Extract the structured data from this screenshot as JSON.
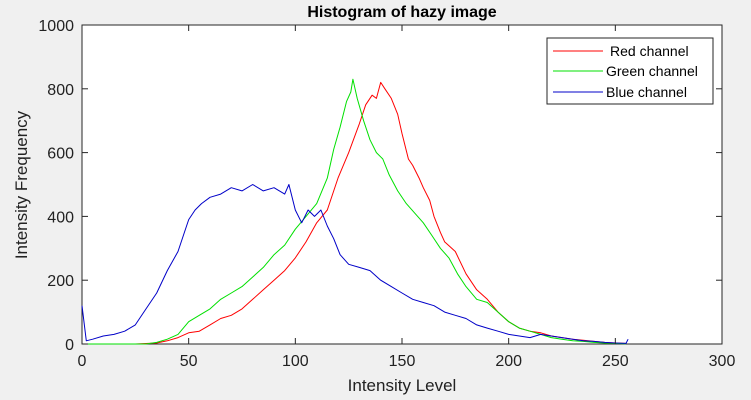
{
  "chart_data": {
    "type": "line",
    "title": "Histogram of hazy image",
    "xlabel": "Intensity Level",
    "ylabel": "Intensity Frequency",
    "xlim": [
      0,
      300
    ],
    "ylim": [
      0,
      1000
    ],
    "xticks": [
      0,
      50,
      100,
      150,
      200,
      250,
      300
    ],
    "yticks": [
      0,
      200,
      400,
      600,
      800,
      1000
    ],
    "grid": false,
    "legend_position": "top-right",
    "series": [
      {
        "name": "Red channel",
        "color": "#ff0000",
        "points": [
          [
            0,
            0
          ],
          [
            25,
            0
          ],
          [
            35,
            3
          ],
          [
            40,
            10
          ],
          [
            45,
            20
          ],
          [
            50,
            35
          ],
          [
            55,
            40
          ],
          [
            60,
            60
          ],
          [
            65,
            80
          ],
          [
            70,
            90
          ],
          [
            75,
            110
          ],
          [
            80,
            140
          ],
          [
            85,
            170
          ],
          [
            90,
            200
          ],
          [
            95,
            230
          ],
          [
            100,
            270
          ],
          [
            105,
            320
          ],
          [
            110,
            380
          ],
          [
            115,
            420
          ],
          [
            120,
            520
          ],
          [
            125,
            600
          ],
          [
            130,
            690
          ],
          [
            133,
            750
          ],
          [
            136,
            780
          ],
          [
            138,
            770
          ],
          [
            140,
            820
          ],
          [
            142,
            800
          ],
          [
            145,
            770
          ],
          [
            148,
            720
          ],
          [
            150,
            660
          ],
          [
            153,
            580
          ],
          [
            155,
            560
          ],
          [
            158,
            520
          ],
          [
            160,
            490
          ],
          [
            163,
            450
          ],
          [
            165,
            400
          ],
          [
            168,
            350
          ],
          [
            170,
            320
          ],
          [
            175,
            290
          ],
          [
            180,
            220
          ],
          [
            185,
            170
          ],
          [
            190,
            140
          ],
          [
            195,
            100
          ],
          [
            200,
            70
          ],
          [
            205,
            50
          ],
          [
            210,
            40
          ],
          [
            215,
            35
          ],
          [
            220,
            25
          ],
          [
            225,
            20
          ],
          [
            230,
            15
          ],
          [
            235,
            12
          ],
          [
            240,
            8
          ],
          [
            245,
            5
          ],
          [
            250,
            3
          ],
          [
            255,
            2
          ]
        ]
      },
      {
        "name": "Green channel",
        "color": "#00e000",
        "points": [
          [
            0,
            0
          ],
          [
            30,
            0
          ],
          [
            35,
            5
          ],
          [
            40,
            15
          ],
          [
            45,
            30
          ],
          [
            50,
            70
          ],
          [
            55,
            90
          ],
          [
            60,
            110
          ],
          [
            65,
            140
          ],
          [
            70,
            160
          ],
          [
            75,
            180
          ],
          [
            80,
            210
          ],
          [
            85,
            240
          ],
          [
            90,
            280
          ],
          [
            95,
            310
          ],
          [
            100,
            360
          ],
          [
            105,
            400
          ],
          [
            110,
            440
          ],
          [
            115,
            520
          ],
          [
            118,
            610
          ],
          [
            121,
            680
          ],
          [
            124,
            760
          ],
          [
            126,
            790
          ],
          [
            127,
            830
          ],
          [
            129,
            770
          ],
          [
            132,
            700
          ],
          [
            135,
            640
          ],
          [
            138,
            600
          ],
          [
            141,
            580
          ],
          [
            144,
            530
          ],
          [
            148,
            480
          ],
          [
            152,
            440
          ],
          [
            156,
            410
          ],
          [
            160,
            380
          ],
          [
            164,
            340
          ],
          [
            168,
            300
          ],
          [
            172,
            270
          ],
          [
            176,
            220
          ],
          [
            180,
            180
          ],
          [
            185,
            140
          ],
          [
            190,
            130
          ],
          [
            195,
            100
          ],
          [
            200,
            70
          ],
          [
            205,
            50
          ],
          [
            210,
            40
          ],
          [
            215,
            30
          ],
          [
            220,
            20
          ],
          [
            225,
            15
          ],
          [
            230,
            10
          ],
          [
            235,
            8
          ],
          [
            240,
            5
          ],
          [
            245,
            3
          ],
          [
            250,
            2
          ],
          [
            255,
            1
          ]
        ]
      },
      {
        "name": "Blue channel",
        "color": "#0000c8",
        "points": [
          [
            0,
            120
          ],
          [
            2,
            10
          ],
          [
            5,
            15
          ],
          [
            10,
            25
          ],
          [
            15,
            30
          ],
          [
            20,
            40
          ],
          [
            25,
            60
          ],
          [
            30,
            110
          ],
          [
            35,
            160
          ],
          [
            40,
            230
          ],
          [
            45,
            290
          ],
          [
            48,
            350
          ],
          [
            50,
            390
          ],
          [
            53,
            420
          ],
          [
            56,
            440
          ],
          [
            60,
            460
          ],
          [
            65,
            470
          ],
          [
            70,
            490
          ],
          [
            75,
            480
          ],
          [
            80,
            500
          ],
          [
            85,
            480
          ],
          [
            90,
            490
          ],
          [
            95,
            470
          ],
          [
            97,
            500
          ],
          [
            100,
            420
          ],
          [
            103,
            380
          ],
          [
            106,
            420
          ],
          [
            109,
            400
          ],
          [
            112,
            420
          ],
          [
            115,
            370
          ],
          [
            118,
            330
          ],
          [
            121,
            280
          ],
          [
            125,
            250
          ],
          [
            130,
            240
          ],
          [
            135,
            230
          ],
          [
            140,
            200
          ],
          [
            145,
            180
          ],
          [
            150,
            160
          ],
          [
            155,
            140
          ],
          [
            160,
            130
          ],
          [
            165,
            120
          ],
          [
            170,
            100
          ],
          [
            175,
            90
          ],
          [
            180,
            80
          ],
          [
            185,
            60
          ],
          [
            190,
            50
          ],
          [
            195,
            40
          ],
          [
            200,
            30
          ],
          [
            205,
            25
          ],
          [
            210,
            20
          ],
          [
            215,
            30
          ],
          [
            220,
            25
          ],
          [
            225,
            20
          ],
          [
            230,
            15
          ],
          [
            235,
            10
          ],
          [
            240,
            8
          ],
          [
            245,
            5
          ],
          [
            250,
            3
          ],
          [
            255,
            2
          ],
          [
            256,
            15
          ]
        ]
      }
    ]
  }
}
